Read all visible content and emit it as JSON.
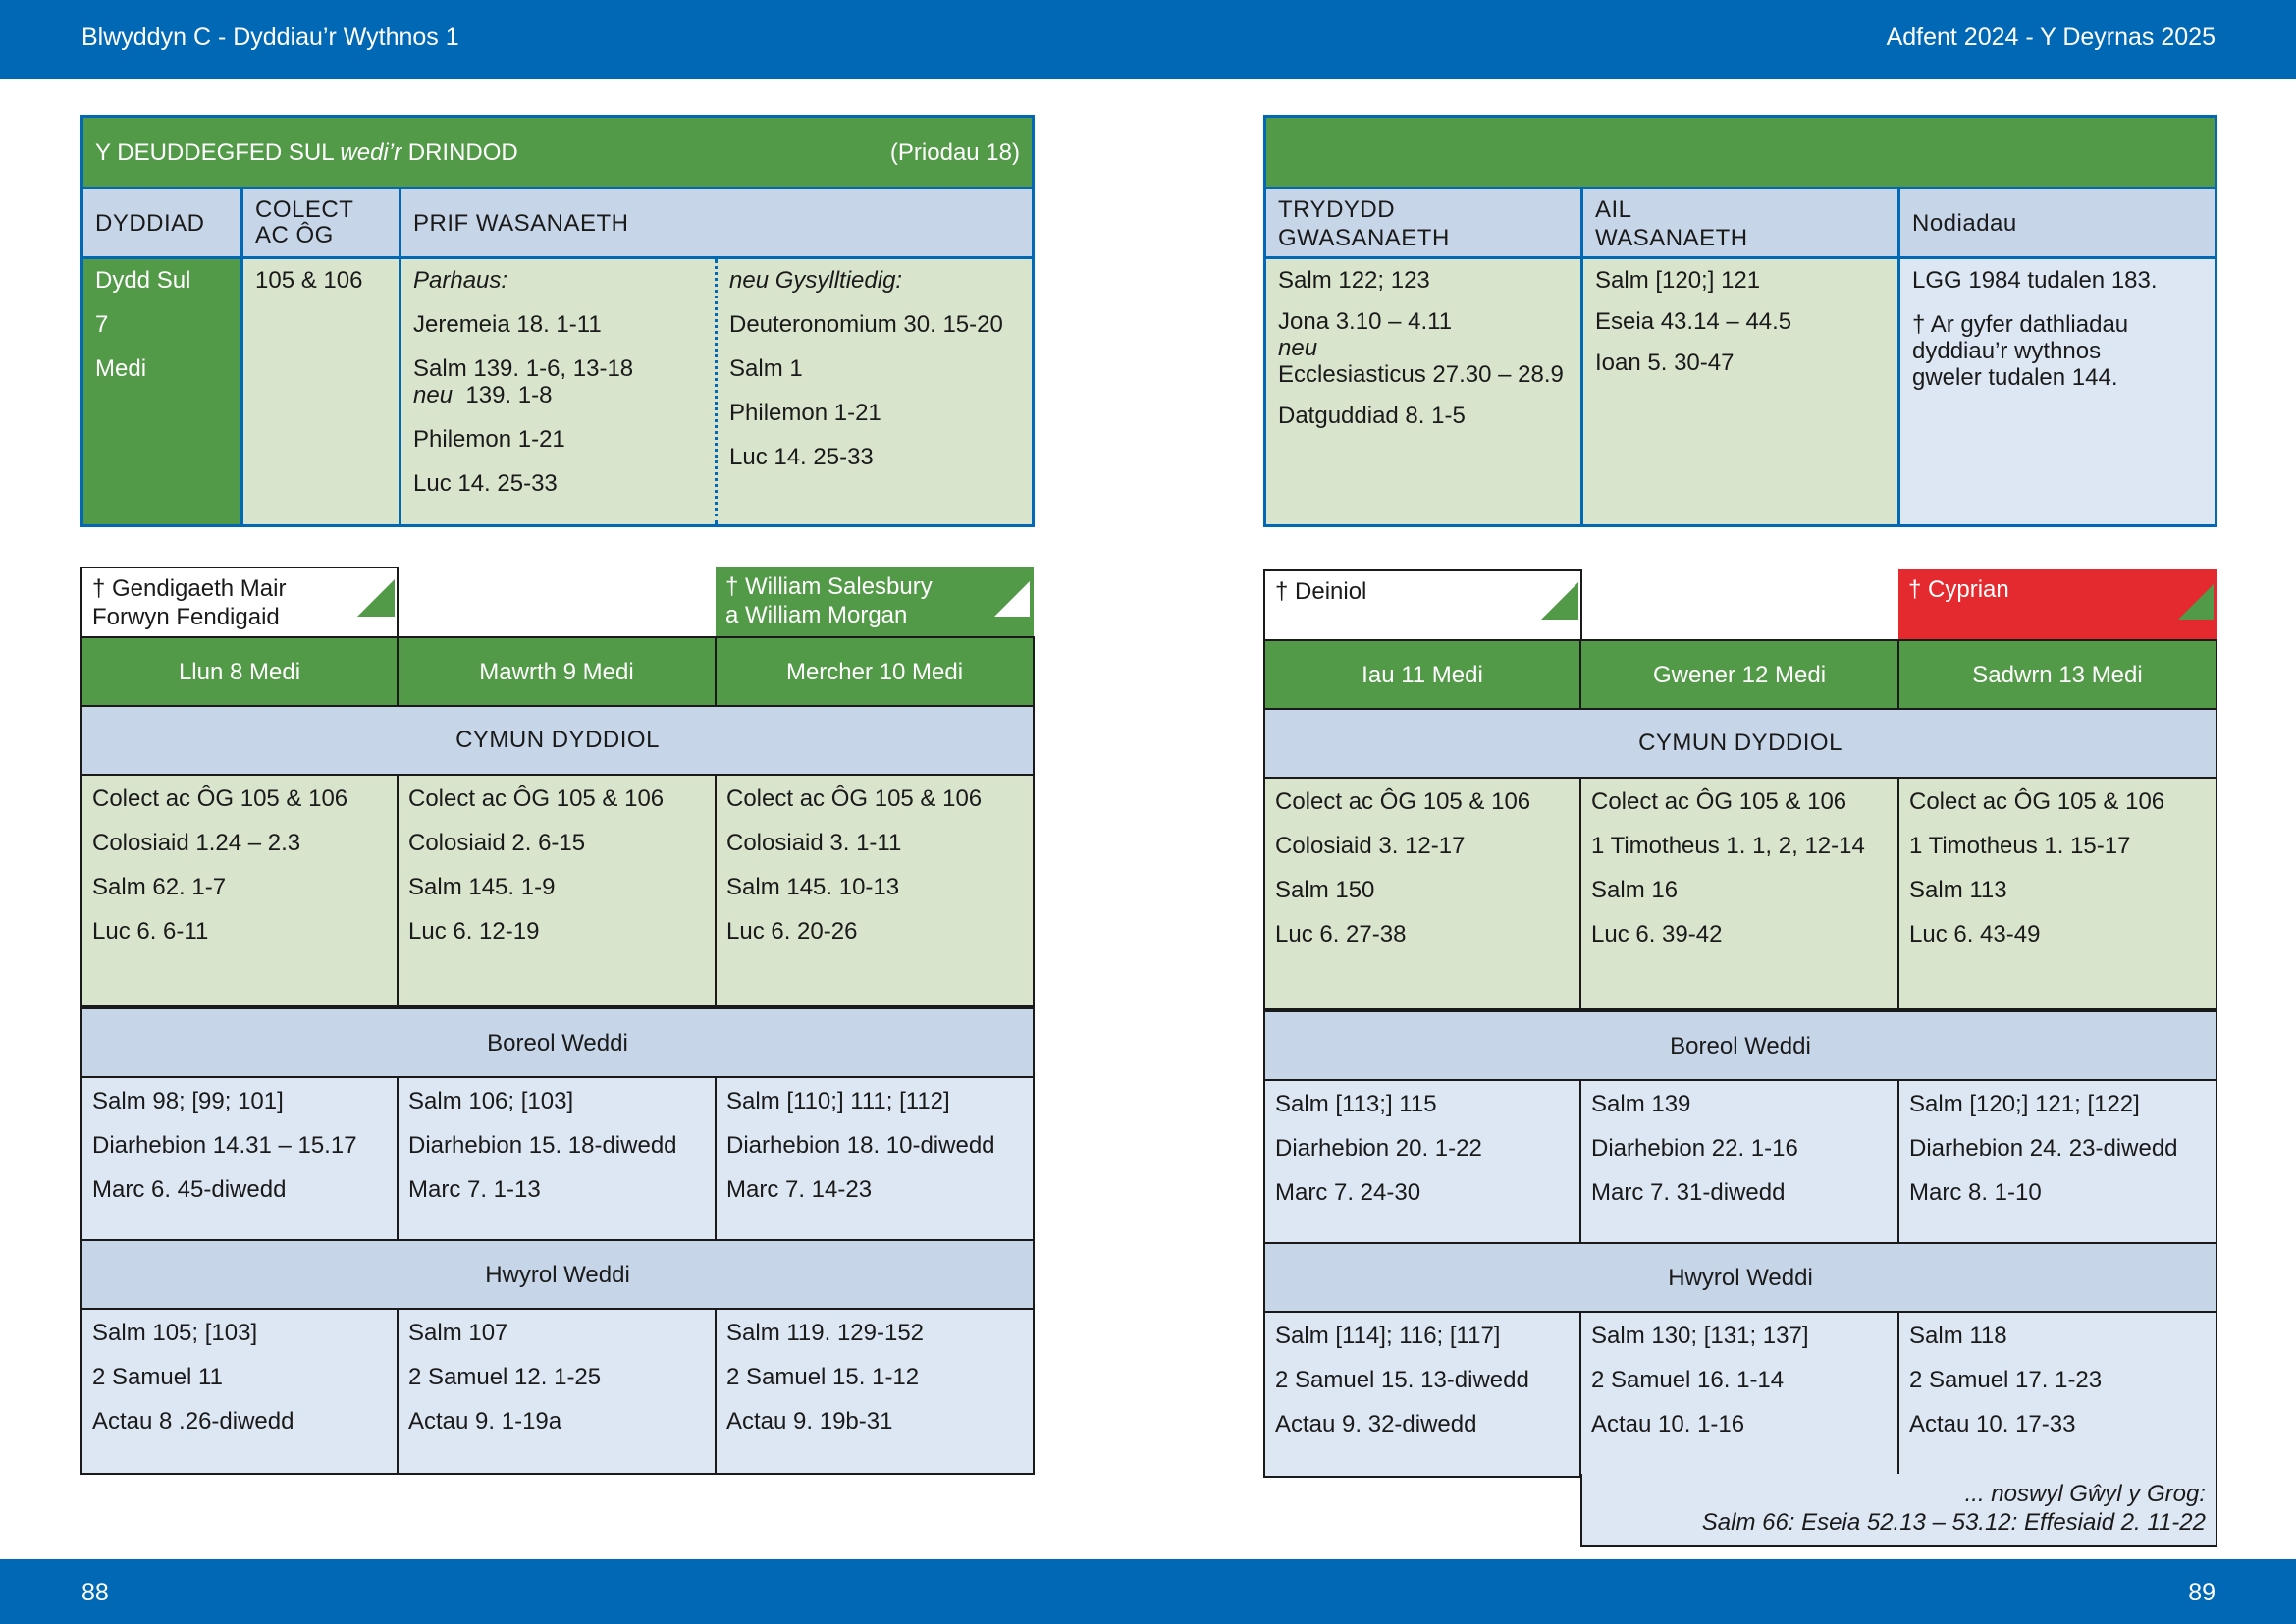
{
  "header": {
    "left": "Blwyddyn  C - Dyddiau’r Wythnos 1",
    "right": "Adfent  2024 - Y Deyrnas 2025"
  },
  "footer": {
    "page_left": "88",
    "page_right": "89"
  },
  "colors": {
    "brand_blue": "#0068b4",
    "green": "#529a47",
    "header_blue": "#c6d5e8",
    "pale_green": "#d9e4cd",
    "light_blue": "#dde7f3",
    "red": "#e52a2f"
  },
  "sunday": {
    "title_a": "Y DEUDDEGFED SUL ",
    "title_b": "wedi’r",
    "title_c": " DRINDOD",
    "propers": "(Priodau 18)",
    "col_date": "DYDDIAD",
    "col_collect": [
      "COLECT",
      "AC ÔG"
    ],
    "col_main": "PRIF WASANAETH",
    "date": [
      "Dydd Sul",
      "7",
      "Medi"
    ],
    "collect": "105 & 106",
    "continuous_label": "Parhaus:",
    "continuous": [
      "Jeremeia 18. 1-11",
      "Salm 139. 1-6, 13-18",
      "139. 1-8",
      "Philemon 1-21",
      "Luc 14. 25-33"
    ],
    "neu": "neu",
    "related_label": "neu Gysylltiedig:",
    "related": [
      "Deuteronomium 30. 15-20",
      "Salm 1",
      "Philemon 1-21",
      "Luc 14. 25-33"
    ],
    "col_third": [
      "TRYDYDD",
      "GWASANAETH"
    ],
    "col_second": [
      "AIL",
      "WASANAETH"
    ],
    "col_notes": "Nodiadau",
    "third": [
      "Salm 122; 123",
      "Jona 3.10 – 4.11",
      "Ecclesiasticus 27.30 – 28.9",
      "Datguddiad 8. 1-5"
    ],
    "second": [
      "Salm [120;] 121",
      "Eseia 43.14 – 44.5",
      "Ioan 5. 30-47"
    ],
    "notes": [
      "LGG 1984 tudalen 183.",
      "† Ar gyfer dathliadau",
      "dyddiau’r wythnos",
      "gweler tudalen 144."
    ]
  },
  "left_week": {
    "commemorations": {
      "mon": [
        "† Gendigaeth Mair",
        "Forwyn Fendigaid"
      ],
      "wed": [
        "† William Salesbury",
        "a William Morgan"
      ]
    },
    "days": [
      "Llun 8 Medi",
      "Mawrth 9 Medi",
      "Mercher 10 Medi"
    ],
    "eucharist_title": "CYMUN DYDDIOL",
    "eucharist": [
      [
        "Colect ac ÔG 105 & 106",
        "Colosiaid 1.24 – 2.3",
        "Salm 62. 1-7",
        "Luc 6. 6-11"
      ],
      [
        "Colect ac ÔG 105 & 106",
        "Colosiaid 2. 6-15",
        "Salm 145. 1-9",
        "Luc 6. 12-19"
      ],
      [
        "Colect ac ÔG 105 & 106",
        "Colosiaid 3. 1-11",
        "Salm 145. 10-13",
        "Luc 6. 20-26"
      ]
    ],
    "morning_title": "Boreol Weddi",
    "morning": [
      [
        "Salm 98; [99; 101]",
        "Diarhebion 14.31 – 15.17",
        "Marc 6. 45-diwedd"
      ],
      [
        "Salm 106; [103]",
        "Diarhebion 15. 18-diwedd",
        "Marc 7. 1-13"
      ],
      [
        "Salm [110;] 111; [112]",
        "Diarhebion 18. 10-diwedd",
        "Marc 7. 14-23"
      ]
    ],
    "evening_title": "Hwyrol Weddi",
    "evening": [
      [
        "Salm 105; [103]",
        "2 Samuel 11",
        "Actau 8 .26-diwedd"
      ],
      [
        "Salm 107",
        "2 Samuel 12. 1-25",
        "Actau 9. 1-19a"
      ],
      [
        "Salm 119. 129-152",
        "2 Samuel 15. 1-12",
        "Actau 9. 19b-31"
      ]
    ]
  },
  "right_week": {
    "commemorations": {
      "thu": "† Deiniol",
      "sat": "† Cyprian"
    },
    "days": [
      "Iau 11 Medi",
      "Gwener 12 Medi",
      "Sadwrn 13 Medi"
    ],
    "eucharist_title": "CYMUN DYDDIOL",
    "eucharist": [
      [
        "Colect ac ÔG 105 & 106",
        "Colosiaid 3. 12-17",
        "Salm 150",
        "Luc 6. 27-38"
      ],
      [
        "Colect ac ÔG 105 & 106",
        "1 Timotheus 1. 1, 2, 12-14",
        "Salm 16",
        "Luc 6. 39-42"
      ],
      [
        "Colect ac ÔG 105 & 106",
        "1 Timotheus 1. 15-17",
        "Salm 113",
        "Luc 6. 43-49"
      ]
    ],
    "morning_title": "Boreol Weddi",
    "morning": [
      [
        "Salm [113;] 115",
        "Diarhebion 20. 1-22",
        "Marc 7. 24-30"
      ],
      [
        "Salm 139",
        "Diarhebion 22. 1-16",
        "Marc 7. 31-diwedd"
      ],
      [
        "Salm [120;] 121; [122]",
        "Diarhebion 24. 23-diwedd",
        "Marc 8. 1-10"
      ]
    ],
    "evening_title": "Hwyrol Weddi",
    "evening": [
      [
        "Salm [114]; 116; [117]",
        "2 Samuel 15. 13-diwedd",
        "Actau 9. 32-diwedd"
      ],
      [
        "Salm 130; [131; 137]",
        "2 Samuel 16. 1-14",
        "Actau 10. 1-16"
      ],
      [
        "Salm 118",
        "2 Samuel 17. 1-23",
        "Actau 10. 17-33"
      ]
    ],
    "eve_note": [
      "... noswyl Gŵyl y Grog:",
      "Salm 66:  Eseia 52.13 – 53.12:  Effesiaid 2. 11-22"
    ]
  }
}
